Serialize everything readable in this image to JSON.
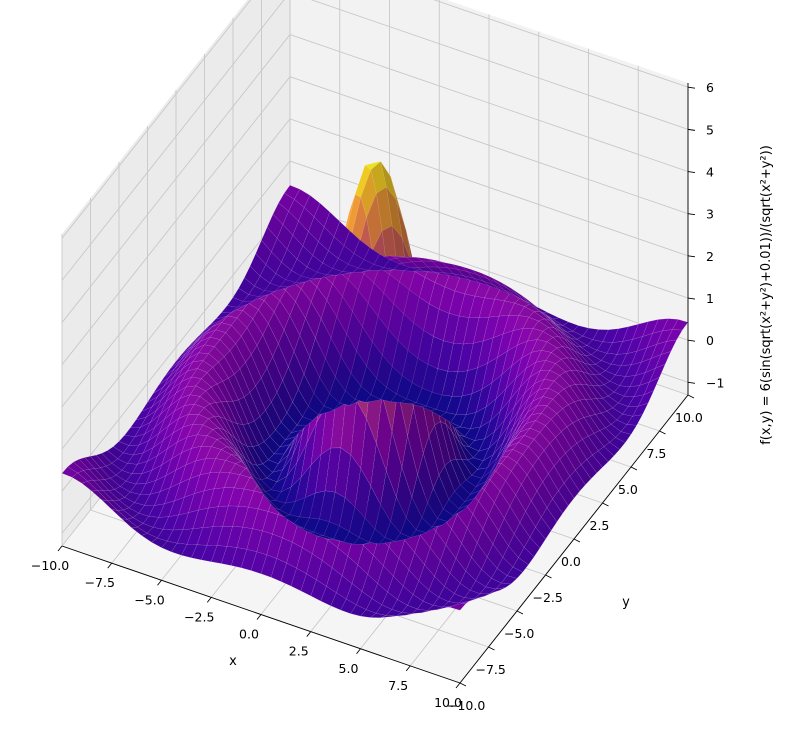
{
  "chart_data": {
    "type": "surface3d",
    "title": "",
    "function": "f(x,y) = 6(sin(sqrt(x²+y²)+0.01))/(sqrt(x²+y²))",
    "amplitude": 6,
    "epsilon": 0.01,
    "colormap": "plasma",
    "grid": true,
    "xlabel": "x",
    "ylabel": "y",
    "zlabel": "f(x,y) = 6(sin(sqrt(x²+y²)+0.01))/(sqrt(x²+y²))",
    "xlim": [
      -10,
      10
    ],
    "ylim": [
      -10,
      10
    ],
    "zlim": [
      -1.3,
      6.1
    ],
    "x_ticks": [
      -10.0,
      -7.5,
      -5.0,
      -2.5,
      0.0,
      2.5,
      5.0,
      7.5,
      10.0
    ],
    "x_tick_labels": [
      "−10.0",
      "−7.5",
      "−5.0",
      "−2.5",
      "0.0",
      "2.5",
      "5.0",
      "7.5",
      "10.0"
    ],
    "y_ticks": [
      -10.0,
      -7.5,
      -5.0,
      -2.5,
      0.0,
      2.5,
      5.0,
      7.5,
      10.0
    ],
    "y_tick_labels": [
      "−10.0",
      "−7.5",
      "−5.0",
      "−2.5",
      "0.0",
      "2.5",
      "5.0",
      "7.5",
      "10.0"
    ],
    "z_ticks": [
      -1,
      0,
      1,
      2,
      3,
      4,
      5,
      6
    ],
    "z_tick_labels": [
      "−1",
      "0",
      "1",
      "2",
      "3",
      "4",
      "5",
      "6"
    ],
    "colors": {
      "pane": "#f2f2f2",
      "gridline": "#c8c8c8",
      "axis": "#000000"
    }
  }
}
